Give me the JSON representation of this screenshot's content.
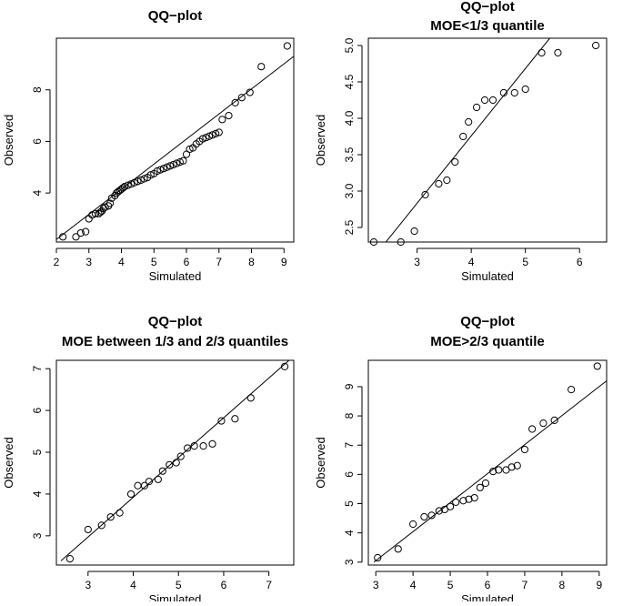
{
  "chart_data": [
    {
      "type": "scatter",
      "title_lines": [
        "QQ−plot"
      ],
      "xlabel": "Simulated",
      "ylabel": "Observed",
      "xlim": [
        2.0,
        9.3
      ],
      "ylim": [
        2.1,
        10.0
      ],
      "xticks": [
        2,
        3,
        4,
        5,
        6,
        7,
        8,
        9
      ],
      "xtick_labels": [
        "2",
        "3",
        "4",
        "5",
        "6",
        "7",
        "8",
        "9"
      ],
      "yticks": [
        4,
        6,
        8
      ],
      "ytick_labels": [
        "4",
        "6",
        "8"
      ],
      "reference_line": [
        [
          2.0,
          2.2
        ],
        [
          9.3,
          9.3
        ]
      ],
      "x": [
        2.2,
        2.6,
        2.75,
        2.9,
        3.0,
        3.1,
        3.2,
        3.3,
        3.35,
        3.4,
        3.45,
        3.5,
        3.6,
        3.65,
        3.7,
        3.8,
        3.85,
        3.9,
        3.95,
        4.0,
        4.05,
        4.1,
        4.2,
        4.3,
        4.4,
        4.5,
        4.6,
        4.7,
        4.8,
        4.9,
        5.0,
        5.1,
        5.2,
        5.3,
        5.4,
        5.5,
        5.6,
        5.7,
        5.8,
        5.9,
        6.0,
        6.1,
        6.2,
        6.3,
        6.4,
        6.5,
        6.6,
        6.7,
        6.8,
        6.9,
        7.0,
        7.1,
        7.3,
        7.5,
        7.7,
        7.95,
        8.3,
        9.1
      ],
      "y": [
        2.3,
        2.3,
        2.45,
        2.5,
        3.0,
        3.15,
        3.2,
        3.2,
        3.25,
        3.3,
        3.4,
        3.45,
        3.5,
        3.6,
        3.8,
        3.9,
        4.0,
        4.05,
        4.1,
        4.15,
        4.2,
        4.25,
        4.3,
        4.35,
        4.4,
        4.45,
        4.5,
        4.55,
        4.6,
        4.7,
        4.75,
        4.85,
        4.9,
        4.95,
        5.0,
        5.05,
        5.1,
        5.15,
        5.2,
        5.25,
        5.5,
        5.7,
        5.75,
        5.9,
        6.0,
        6.1,
        6.15,
        6.2,
        6.25,
        6.3,
        6.35,
        6.85,
        7.0,
        7.5,
        7.7,
        7.9,
        8.9,
        9.7
      ]
    },
    {
      "type": "scatter",
      "title_lines": [
        "QQ−plot",
        "MOE<1/3 quantile"
      ],
      "xlabel": "Simulated",
      "ylabel": "Observed",
      "xlim": [
        2.1,
        6.5
      ],
      "ylim": [
        2.3,
        5.1
      ],
      "xticks": [
        3,
        4,
        5,
        6
      ],
      "xtick_labels": [
        "3",
        "4",
        "5",
        "6"
      ],
      "yticks": [
        2.5,
        3.0,
        3.5,
        4.0,
        4.5,
        5.0
      ],
      "ytick_labels": [
        "2.5",
        "3.0",
        "3.5",
        "4.0",
        "4.5",
        "5.0"
      ],
      "reference_line": [
        [
          2.1,
          2.0
        ],
        [
          5.45,
          5.1
        ]
      ],
      "x": [
        2.2,
        2.7,
        2.95,
        3.15,
        3.4,
        3.55,
        3.7,
        3.85,
        3.95,
        4.1,
        4.25,
        4.4,
        4.6,
        4.8,
        5.0,
        5.3,
        5.6,
        6.3
      ],
      "y": [
        2.3,
        2.3,
        2.45,
        2.95,
        3.1,
        3.15,
        3.4,
        3.75,
        3.95,
        4.15,
        4.25,
        4.25,
        4.35,
        4.35,
        4.4,
        4.9,
        4.9,
        5.0
      ]
    },
    {
      "type": "scatter",
      "title_lines": [
        "QQ−plot",
        "MOE between 1/3 and 2/3 quantiles"
      ],
      "xlabel": "Simulated",
      "ylabel": "Observed",
      "xlim": [
        2.3,
        7.55
      ],
      "ylim": [
        2.3,
        7.2
      ],
      "xticks": [
        3,
        4,
        5,
        6,
        7
      ],
      "xtick_labels": [
        "3",
        "4",
        "5",
        "6",
        "7"
      ],
      "yticks": [
        3,
        4,
        5,
        6,
        7
      ],
      "ytick_labels": [
        "3",
        "4",
        "5",
        "6",
        "7"
      ],
      "reference_line": [
        [
          2.4,
          2.4
        ],
        [
          7.55,
          7.3
        ]
      ],
      "x": [
        2.6,
        3.0,
        3.3,
        3.5,
        3.7,
        3.95,
        4.1,
        4.25,
        4.35,
        4.55,
        4.65,
        4.8,
        4.95,
        5.05,
        5.2,
        5.35,
        5.55,
        5.75,
        5.95,
        6.25,
        6.6,
        7.35
      ],
      "y": [
        2.45,
        3.15,
        3.25,
        3.45,
        3.55,
        4.0,
        4.2,
        4.2,
        4.3,
        4.35,
        4.55,
        4.7,
        4.75,
        4.9,
        5.1,
        5.15,
        5.15,
        5.2,
        5.75,
        5.8,
        6.3,
        7.05
      ]
    },
    {
      "type": "scatter",
      "title_lines": [
        "QQ−plot",
        "MOE>2/3 quantile"
      ],
      "xlabel": "Simulated",
      "ylabel": "Observed",
      "xlim": [
        2.8,
        9.2
      ],
      "ylim": [
        2.9,
        9.9
      ],
      "xticks": [
        3,
        4,
        5,
        6,
        7,
        8,
        9
      ],
      "xtick_labels": [
        "3",
        "4",
        "5",
        "6",
        "7",
        "8",
        "9"
      ],
      "yticks": [
        3,
        4,
        5,
        6,
        7,
        8,
        9
      ],
      "ytick_labels": [
        "3",
        "4",
        "5",
        "6",
        "7",
        "8",
        "9"
      ],
      "reference_line": [
        [
          2.95,
          3.0
        ],
        [
          9.2,
          9.2
        ]
      ],
      "x": [
        3.05,
        3.6,
        4.0,
        4.3,
        4.5,
        4.7,
        4.85,
        5.0,
        5.15,
        5.35,
        5.5,
        5.65,
        5.8,
        5.95,
        6.15,
        6.3,
        6.5,
        6.65,
        6.8,
        7.0,
        7.2,
        7.5,
        7.8,
        8.25,
        8.95
      ],
      "y": [
        3.15,
        3.45,
        4.3,
        4.55,
        4.6,
        4.75,
        4.8,
        4.9,
        5.05,
        5.1,
        5.15,
        5.2,
        5.55,
        5.7,
        6.1,
        6.15,
        6.15,
        6.25,
        6.3,
        6.85,
        7.55,
        7.75,
        7.85,
        8.9,
        9.7
      ]
    }
  ]
}
